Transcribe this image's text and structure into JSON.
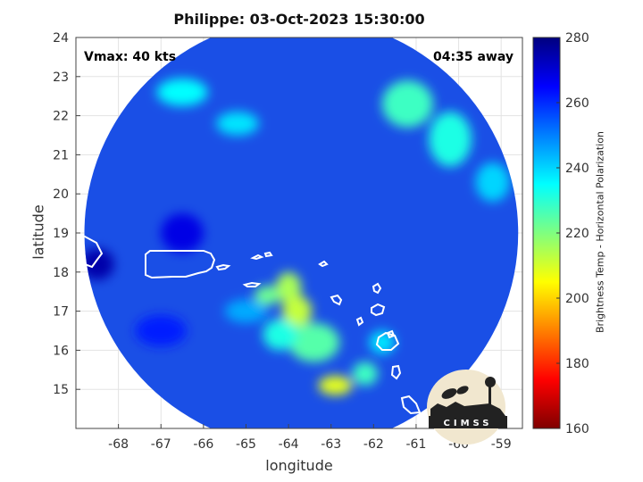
{
  "chart_data": {
    "type": "heatmap",
    "title": "Philippe: 03-Oct-2023 15:30:00",
    "xlabel": "longitude",
    "ylabel": "latitude",
    "xlim": [
      -69,
      -58.5
    ],
    "ylim": [
      14,
      24
    ],
    "x_ticks": [
      -68,
      -67,
      -66,
      -65,
      -64,
      -63,
      -62,
      -61,
      -60,
      -59
    ],
    "y_ticks": [
      15,
      16,
      17,
      18,
      19,
      20,
      21,
      22,
      23,
      24
    ],
    "grid": true,
    "annotations": {
      "vmax": "Vmax: 40 kts",
      "distance": "04:35 away"
    },
    "colorbar": {
      "label": "Brightness Temp - Horizontal Polarization",
      "range": [
        160,
        280
      ],
      "ticks": [
        160,
        180,
        200,
        220,
        240,
        260,
        280
      ],
      "colormap": [
        "#7f0000",
        "#ff0000",
        "#ffff00",
        "#00ffff",
        "#0000ff",
        "#00007f"
      ]
    },
    "swath": {
      "center_lon": -63.7,
      "center_lat": 19.0,
      "radius_lon": 5.1,
      "radius_lat": 5.5
    },
    "logo_text": "CIMSS",
    "features": [
      {
        "lon": -66.5,
        "lat": 22.6,
        "rx": 0.6,
        "ry": 0.35,
        "value": 235
      },
      {
        "lon": -65.2,
        "lat": 21.8,
        "rx": 0.5,
        "ry": 0.3,
        "value": 238
      },
      {
        "lon": -61.2,
        "lat": 22.3,
        "rx": 0.6,
        "ry": 0.6,
        "value": 228
      },
      {
        "lon": -60.2,
        "lat": 21.4,
        "rx": 0.5,
        "ry": 0.7,
        "value": 232
      },
      {
        "lon": -59.2,
        "lat": 20.3,
        "rx": 0.4,
        "ry": 0.5,
        "value": 240
      },
      {
        "lon": -64.0,
        "lat": 17.6,
        "rx": 0.3,
        "ry": 0.4,
        "value": 215
      },
      {
        "lon": -63.8,
        "lat": 17.0,
        "rx": 0.35,
        "ry": 0.4,
        "value": 212
      },
      {
        "lon": -63.4,
        "lat": 16.2,
        "rx": 0.6,
        "ry": 0.5,
        "value": 225
      },
      {
        "lon": -64.2,
        "lat": 16.4,
        "rx": 0.4,
        "ry": 0.4,
        "value": 232
      },
      {
        "lon": -64.5,
        "lat": 17.4,
        "rx": 0.3,
        "ry": 0.25,
        "value": 222
      },
      {
        "lon": -62.9,
        "lat": 15.1,
        "rx": 0.4,
        "ry": 0.25,
        "value": 208
      },
      {
        "lon": -62.2,
        "lat": 15.4,
        "rx": 0.3,
        "ry": 0.3,
        "value": 228
      },
      {
        "lon": -61.8,
        "lat": 16.2,
        "rx": 0.3,
        "ry": 0.3,
        "value": 238
      },
      {
        "lon": -65.0,
        "lat": 17.0,
        "rx": 0.5,
        "ry": 0.3,
        "value": 245
      },
      {
        "lon": -66.5,
        "lat": 19.0,
        "rx": 0.5,
        "ry": 0.5,
        "value": 268
      },
      {
        "lon": -68.5,
        "lat": 18.2,
        "rx": 0.4,
        "ry": 0.4,
        "value": 275
      },
      {
        "lon": -67.0,
        "lat": 16.5,
        "rx": 0.6,
        "ry": 0.4,
        "value": 262
      }
    ]
  }
}
